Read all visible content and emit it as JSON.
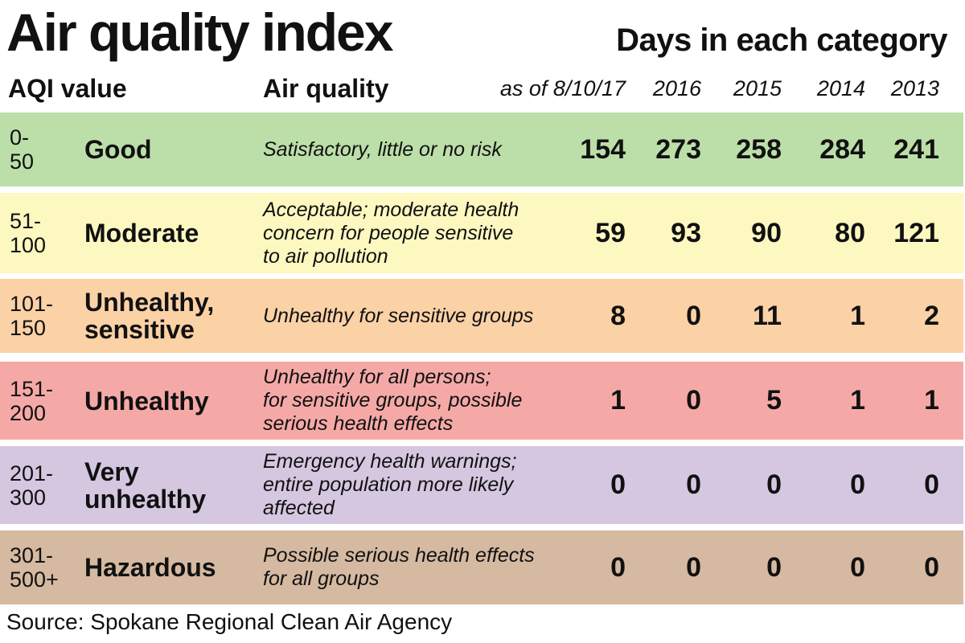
{
  "title": "Air quality index",
  "subtitle": "Days in each category",
  "headers": {
    "aqi_value": "AQI value",
    "air_quality": "Air quality"
  },
  "source": "Source: Spokane Regional Clean Air Agency",
  "chart_data": {
    "type": "table",
    "title": "Air quality index",
    "subtitle": "Days in each category",
    "columns": [
      "as of 8/10/17",
      "2016",
      "2015",
      "2014",
      "2013"
    ],
    "rows": [
      {
        "range": "0-\n50",
        "category": "Good",
        "description": "Satisfactory, little or no risk",
        "color": "#bcdfa9",
        "values": [
          154,
          273,
          258,
          284,
          241
        ]
      },
      {
        "range": "51-\n100",
        "category": "Moderate",
        "description": "Acceptable; moderate health\nconcern for people sensitive\nto air pollution",
        "color": "#fdf8c0",
        "values": [
          59,
          93,
          90,
          80,
          121
        ]
      },
      {
        "range": "101-\n150",
        "category": "Unhealthy,\nsensitive",
        "description": "Unhealthy for sensitive groups",
        "color": "#fbd1a6",
        "values": [
          8,
          0,
          11,
          1,
          2
        ]
      },
      {
        "range": "151-\n200",
        "category": "Unhealthy",
        "description": "Unhealthy for all persons;\nfor sensitive groups, possible\nserious health effects",
        "color": "#f5a9a7",
        "values": [
          1,
          0,
          5,
          1,
          1
        ]
      },
      {
        "range": "201-\n300",
        "category": "Very\nunhealthy",
        "description": "Emergency health warnings;\nentire population more likely\naffected",
        "color": "#d5c7e0",
        "values": [
          0,
          0,
          0,
          0,
          0
        ]
      },
      {
        "range": "301-\n500+",
        "category": "Hazardous",
        "description": "Possible serious health effects\nfor all groups",
        "color": "#d5b9a1",
        "values": [
          0,
          0,
          0,
          0,
          0
        ]
      }
    ]
  }
}
